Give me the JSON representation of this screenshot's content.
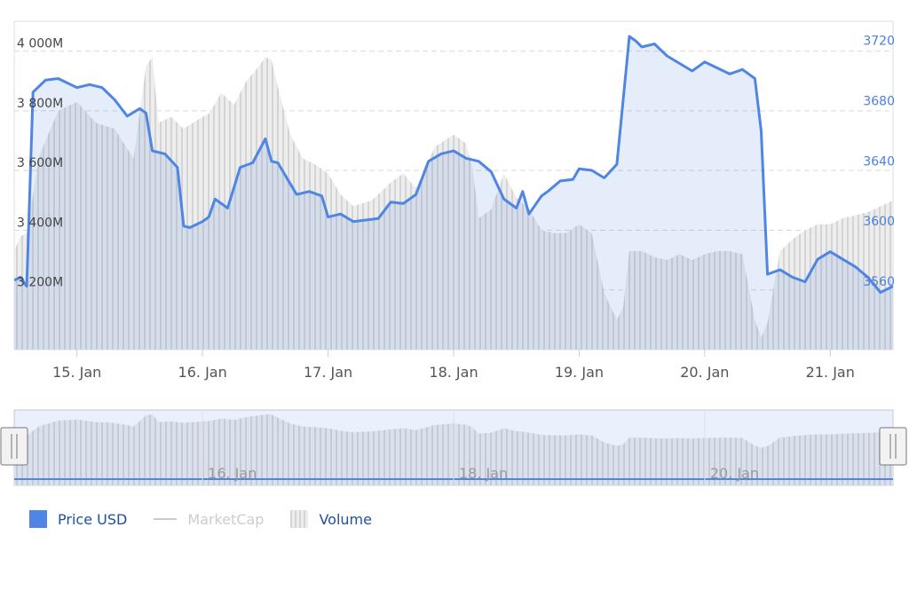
{
  "chart_data": {
    "type": "area",
    "x_labels": [
      "15. Jan",
      "16. Jan",
      "17. Jan",
      "18. Jan",
      "19. Jan",
      "20. Jan",
      "21. Jan"
    ],
    "navigator_labels": [
      "16. Jan",
      "18. Jan",
      "20. Jan"
    ],
    "y_left": {
      "ticks": [
        "3 200M",
        "3 400M",
        "3 600M",
        "3 800M",
        "4 000M"
      ],
      "tick_values": [
        3200,
        3400,
        3600,
        3800,
        4000
      ],
      "range": [
        3000,
        4100
      ]
    },
    "y_right": {
      "ticks": [
        "3560",
        "3600",
        "3640",
        "3680",
        "3720"
      ],
      "tick_values": [
        3560,
        3600,
        3640,
        3680,
        3720
      ],
      "range": [
        3520,
        3738
      ]
    },
    "x_range": [
      14.5,
      21.5
    ],
    "grid": "horizontal dashed",
    "legend_position": "bottom-left",
    "series": [
      {
        "name": "Price USD",
        "axis": "right",
        "color": "#4f86e3",
        "x": [
          14.5,
          14.55,
          14.6,
          14.65,
          14.75,
          14.85,
          14.95,
          15.0,
          15.1,
          15.2,
          15.3,
          15.4,
          15.5,
          15.55,
          15.6,
          15.7,
          15.8,
          15.85,
          15.9,
          16.0,
          16.05,
          16.1,
          16.2,
          16.3,
          16.4,
          16.5,
          16.55,
          16.6,
          16.7,
          16.75,
          16.85,
          16.95,
          17.0,
          17.1,
          17.2,
          17.3,
          17.4,
          17.5,
          17.6,
          17.7,
          17.8,
          17.9,
          18.0,
          18.1,
          18.2,
          18.3,
          18.4,
          18.5,
          18.55,
          18.6,
          18.7,
          18.75,
          18.85,
          18.95,
          19.0,
          19.1,
          19.2,
          19.3,
          19.4,
          19.45,
          19.5,
          19.6,
          19.7,
          19.8,
          19.9,
          20.0,
          20.1,
          20.2,
          20.3,
          20.4,
          20.45,
          20.5,
          20.6,
          20.7,
          20.8,
          20.9,
          21.0,
          21.1,
          21.2,
          21.3,
          21.4,
          21.5
        ],
        "values": [
          3566,
          3568,
          3562,
          3691,
          3699,
          3700,
          3696,
          3694,
          3696,
          3694,
          3686,
          3675,
          3680,
          3677,
          3652,
          3650,
          3641,
          3602,
          3601,
          3605,
          3608,
          3620,
          3614,
          3641,
          3644,
          3660,
          3645,
          3644,
          3630,
          3623,
          3625,
          3622,
          3608,
          3610,
          3605,
          3606,
          3607,
          3618,
          3617,
          3623,
          3645,
          3650,
          3652,
          3647,
          3645,
          3638,
          3620,
          3614,
          3625,
          3610,
          3622,
          3625,
          3632,
          3633,
          3640,
          3639,
          3634,
          3643,
          3728,
          3725,
          3721,
          3723,
          3715,
          3710,
          3705,
          3711,
          3707,
          3703,
          3706,
          3700,
          3665,
          3570,
          3573,
          3568,
          3565,
          3580,
          3585,
          3580,
          3575,
          3568,
          3558,
          3562
        ]
      },
      {
        "name": "MarketCap",
        "axis": "left",
        "color": "#c8c8c8",
        "visible": false
      },
      {
        "name": "Volume",
        "axis": "left",
        "color": "#d0d0d0",
        "x": [
          14.5,
          14.55,
          14.6,
          14.7,
          14.85,
          15.0,
          15.15,
          15.3,
          15.45,
          15.55,
          15.6,
          15.65,
          15.75,
          15.85,
          16.0,
          16.05,
          16.15,
          16.25,
          16.35,
          16.45,
          16.5,
          16.55,
          16.6,
          16.7,
          16.8,
          16.9,
          17.0,
          17.1,
          17.2,
          17.35,
          17.5,
          17.6,
          17.7,
          17.85,
          18.0,
          18.1,
          18.15,
          18.2,
          18.3,
          18.4,
          18.5,
          18.6,
          18.7,
          18.8,
          18.9,
          19.0,
          19.1,
          19.2,
          19.3,
          19.35,
          19.4,
          19.5,
          19.6,
          19.7,
          19.8,
          19.9,
          20.0,
          20.1,
          20.2,
          20.3,
          20.4,
          20.45,
          20.5,
          20.6,
          20.7,
          20.8,
          20.9,
          21.0,
          21.1,
          21.2,
          21.3,
          21.4,
          21.5
        ],
        "values": [
          3330,
          3380,
          3390,
          3650,
          3800,
          3830,
          3760,
          3740,
          3640,
          3950,
          3980,
          3760,
          3780,
          3740,
          3780,
          3790,
          3860,
          3820,
          3900,
          3950,
          3980,
          3970,
          3880,
          3720,
          3640,
          3620,
          3590,
          3520,
          3480,
          3500,
          3560,
          3590,
          3540,
          3680,
          3720,
          3690,
          3610,
          3440,
          3470,
          3590,
          3510,
          3470,
          3400,
          3390,
          3390,
          3420,
          3390,
          3190,
          3100,
          3140,
          3330,
          3330,
          3310,
          3300,
          3320,
          3300,
          3320,
          3330,
          3330,
          3320,
          3100,
          3040,
          3090,
          3330,
          3370,
          3400,
          3420,
          3420,
          3440,
          3450,
          3460,
          3480,
          3500
        ]
      }
    ]
  },
  "legend": [
    {
      "label": "Price USD",
      "color": "#4f86e3",
      "text_color": "#1f4f9f",
      "active": true
    },
    {
      "label": "MarketCap",
      "color": "#cccccc",
      "text_color": "#cccccc",
      "active": false
    },
    {
      "label": "Volume",
      "color": "#d8d8d8",
      "text_color": "#1f4f9f",
      "active": true
    }
  ]
}
